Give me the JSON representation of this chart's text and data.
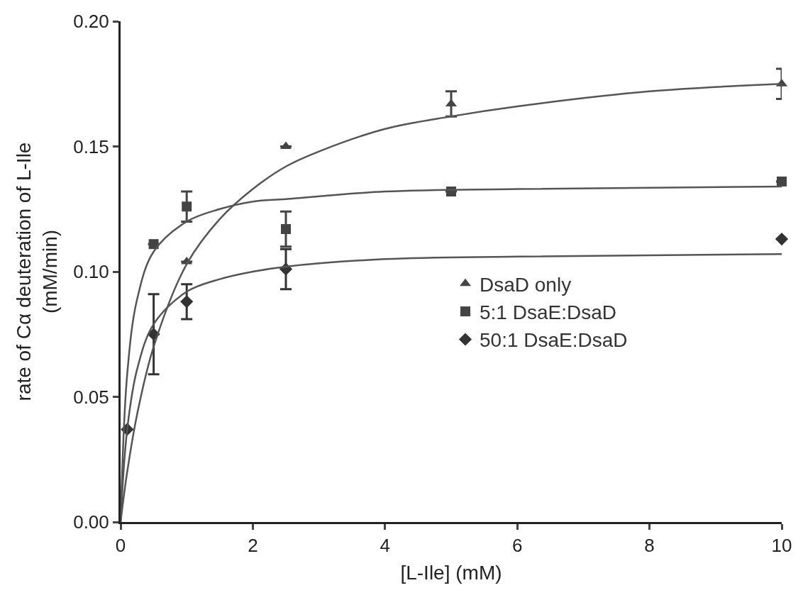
{
  "chart_data": {
    "type": "scatter",
    "xlabel": "[L-Ile] (mM)",
    "ylabel": "rate of Cα deuteration of L-Ile\n(mM/min)",
    "xlim": [
      0,
      10
    ],
    "xticks": [
      0,
      2,
      4,
      6,
      8,
      10
    ],
    "ylim": [
      0,
      0.2
    ],
    "yticks": [
      {
        "value": 0,
        "label": "0.00"
      },
      {
        "value": 0.05,
        "label": "0.05"
      },
      {
        "value": 0.1,
        "label": "0.10"
      },
      {
        "value": 0.15,
        "label": "0.15"
      },
      {
        "value": 0.2,
        "label": "0.20"
      }
    ],
    "legend": "right",
    "line_style": "solid",
    "series": [
      {
        "name": "DsaD only",
        "marker": "triangle",
        "color": "#444444",
        "x": [
          1,
          2.5,
          5,
          10
        ],
        "values": [
          0.104,
          0.15,
          0.167,
          0.175
        ],
        "errors": [
          null,
          null,
          0.005,
          0.006
        ]
      },
      {
        "name": "5:1 DsaE:DsaD",
        "marker": "square",
        "color": "#444444",
        "x": [
          0.5,
          1,
          2.5,
          5,
          10
        ],
        "values": [
          0.111,
          0.126,
          0.117,
          0.132,
          0.136
        ],
        "errors": [
          null,
          0.006,
          0.007,
          null,
          null
        ]
      },
      {
        "name": "50:1 DsaE:DsaD",
        "marker": "diamond",
        "color": "#333333",
        "x": [
          0.1,
          0.5,
          1,
          2.5,
          10
        ],
        "values": [
          0.037,
          0.075,
          0.088,
          0.101,
          0.113
        ],
        "errors": [
          null,
          0.016,
          0.007,
          0.008,
          null
        ]
      },
      {
        "type": "line",
        "marker": "none",
        "color": "#555555",
        "x": [
          0,
          0.1,
          0.25,
          0.5,
          1,
          1.5,
          2,
          2.5,
          3,
          4,
          5,
          6,
          8,
          10
        ],
        "values": [
          0,
          0.02,
          0.043,
          0.07,
          0.103,
          0.121,
          0.133,
          0.142,
          0.148,
          0.157,
          0.162,
          0.166,
          0.172,
          0.175
        ]
      },
      {
        "type": "line",
        "marker": "none",
        "color": "#555555",
        "x": [
          0,
          0.1,
          0.25,
          0.5,
          1,
          1.5,
          2,
          2.5,
          4,
          6,
          10
        ],
        "values": [
          0,
          0.059,
          0.089,
          0.108,
          0.12,
          0.125,
          0.128,
          0.129,
          0.132,
          0.133,
          0.134
        ]
      },
      {
        "type": "line",
        "marker": "none",
        "color": "#555555",
        "x": [
          0,
          0.1,
          0.25,
          0.5,
          1,
          1.5,
          2,
          2.5,
          4,
          6,
          10
        ],
        "values": [
          0,
          0.037,
          0.061,
          0.079,
          0.092,
          0.097,
          0.1,
          0.102,
          0.105,
          0.106,
          0.107
        ]
      }
    ]
  }
}
